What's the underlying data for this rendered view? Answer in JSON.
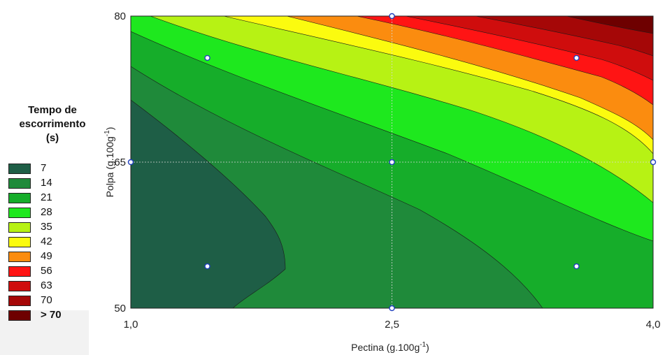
{
  "chart_data": {
    "type": "contour",
    "xlabel": "Pectina (g.100g",
    "xlabel_sup": "-1",
    "xlabel_end": ")",
    "ylabel": "Polpa (g.100g",
    "ylabel_sup": "-1",
    "ylabel_end": ")",
    "xlim": [
      1.0,
      4.0
    ],
    "ylim": [
      50,
      80
    ],
    "x_ticks": [
      "1,0",
      "2,5",
      "4,0"
    ],
    "x_tick_values": [
      1.0,
      2.5,
      4.0
    ],
    "y_ticks": [
      "50",
      "65",
      "80"
    ],
    "y_tick_values": [
      50,
      65,
      80
    ],
    "legend_title": [
      "Tempo de",
      "escorrimento",
      "(s)"
    ],
    "levels": [
      {
        "label": "7",
        "color": "#1e5e46"
      },
      {
        "label": "14",
        "color": "#1f8a3a"
      },
      {
        "label": "21",
        "color": "#16ad2a"
      },
      {
        "label": "28",
        "color": "#1ee81e"
      },
      {
        "label": "35",
        "color": "#b7f214"
      },
      {
        "label": "42",
        "color": "#fbfb0f"
      },
      {
        "label": "49",
        "color": "#fb8c0f"
      },
      {
        "label": "56",
        "color": "#ff1414"
      },
      {
        "label": "63",
        "color": "#cf0d0d"
      },
      {
        "label": "70",
        "color": "#a50707"
      },
      {
        "label": "> 70",
        "color": "#6e0000"
      }
    ],
    "design_points": [
      {
        "x": 1.44,
        "y": 75.7
      },
      {
        "x": 3.56,
        "y": 75.7
      },
      {
        "x": 1.0,
        "y": 65
      },
      {
        "x": 2.5,
        "y": 65
      },
      {
        "x": 4.0,
        "y": 65
      },
      {
        "x": 1.44,
        "y": 54.3
      },
      {
        "x": 3.56,
        "y": 54.3
      },
      {
        "x": 2.5,
        "y": 80
      },
      {
        "x": 2.5,
        "y": 50
      }
    ],
    "grid": true,
    "legend_position": "left"
  }
}
